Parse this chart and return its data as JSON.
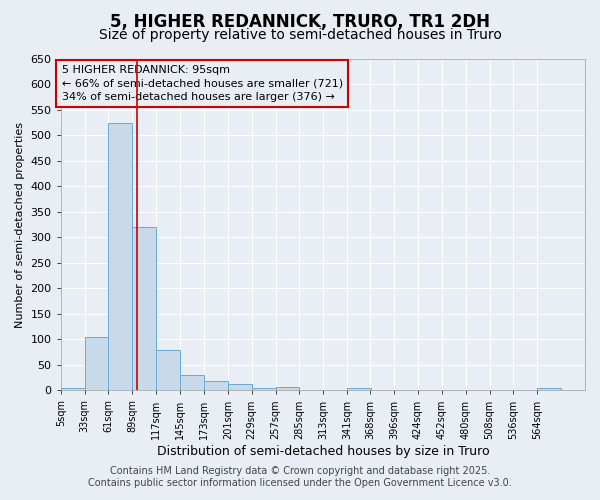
{
  "title": "5, HIGHER REDANNICK, TRURO, TR1 2DH",
  "subtitle": "Size of property relative to semi-detached houses in Truro",
  "xlabel": "Distribution of semi-detached houses by size in Truro",
  "ylabel": "Number of semi-detached properties",
  "bin_labels": [
    "5sqm",
    "33sqm",
    "61sqm",
    "89sqm",
    "117sqm",
    "145sqm",
    "173sqm",
    "201sqm",
    "229sqm",
    "257sqm",
    "285sqm",
    "313sqm",
    "341sqm",
    "368sqm",
    "396sqm",
    "424sqm",
    "452sqm",
    "480sqm",
    "508sqm",
    "536sqm",
    "564sqm"
  ],
  "bin_edges": [
    5,
    33,
    61,
    89,
    117,
    145,
    173,
    201,
    229,
    257,
    285,
    313,
    341,
    368,
    396,
    424,
    452,
    480,
    508,
    536,
    564,
    592
  ],
  "values": [
    5,
    105,
    525,
    320,
    80,
    30,
    18,
    12,
    5,
    7,
    0,
    0,
    5,
    0,
    0,
    0,
    0,
    0,
    0,
    0,
    5
  ],
  "bar_color": "#c8daea",
  "bar_edge_color": "#6aaad4",
  "vline_x": 95,
  "vline_color": "#cc0000",
  "annotation_line1": "5 HIGHER REDANNICK: 95sqm",
  "annotation_line2": "← 66% of semi-detached houses are smaller (721)",
  "annotation_line3": "34% of semi-detached houses are larger (376) →",
  "annotation_box_color": "#cc0000",
  "ylim": [
    0,
    650
  ],
  "yticks": [
    0,
    50,
    100,
    150,
    200,
    250,
    300,
    350,
    400,
    450,
    500,
    550,
    600,
    650
  ],
  "bg_color": "#e8eef4",
  "plot_bg_color": "#e8eef4",
  "footer_line1": "Contains HM Land Registry data © Crown copyright and database right 2025.",
  "footer_line2": "Contains public sector information licensed under the Open Government Licence v3.0.",
  "title_fontsize": 12,
  "subtitle_fontsize": 10,
  "annotation_fontsize": 8,
  "footer_fontsize": 7,
  "ylabel_fontsize": 8,
  "xlabel_fontsize": 9,
  "ytick_fontsize": 8,
  "xtick_fontsize": 7
}
